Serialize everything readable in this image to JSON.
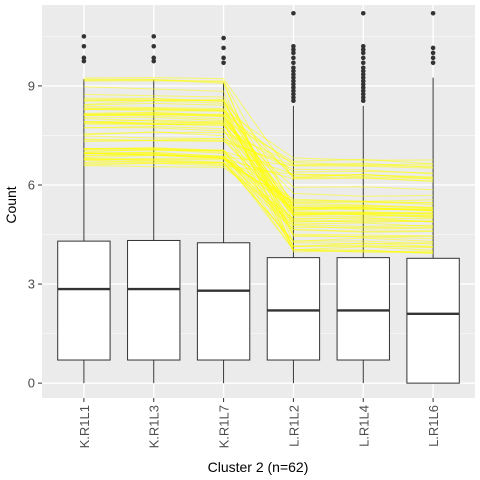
{
  "chart_data": {
    "type": "boxplot",
    "title": "",
    "xlabel": "Cluster 2 (n=62)",
    "ylabel": "Count",
    "ylim": [
      -0.45,
      11.45
    ],
    "yticks": [
      0,
      3,
      6,
      9
    ],
    "ytick_labels": [
      "0",
      "3",
      "6",
      "9"
    ],
    "grid": true,
    "categories": [
      "K.R1L1",
      "K.R1L3",
      "K.R1L7",
      "L.R1L2",
      "L.R1L4",
      "L.R1L6"
    ],
    "boxes": [
      {
        "category": "K.R1L1",
        "whisker_low": 0.0,
        "q1": 0.7,
        "median": 2.85,
        "q3": 4.3,
        "whisker_high": 9.2,
        "outliers": [
          9.75,
          9.85,
          10.2,
          10.5
        ]
      },
      {
        "category": "K.R1L3",
        "whisker_low": 0.0,
        "q1": 0.7,
        "median": 2.85,
        "q3": 4.32,
        "whisker_high": 9.2,
        "outliers": [
          9.75,
          9.85,
          10.2,
          10.5
        ]
      },
      {
        "category": "K.R1L7",
        "whisker_low": 0.0,
        "q1": 0.7,
        "median": 2.8,
        "q3": 4.25,
        "whisker_high": 9.1,
        "outliers": [
          9.7,
          9.85,
          10.15,
          10.45
        ]
      },
      {
        "category": "L.R1L2",
        "whisker_low": 0.0,
        "q1": 0.7,
        "median": 2.2,
        "q3": 3.8,
        "whisker_high": 8.4,
        "outliers": [
          8.55,
          8.65,
          8.75,
          8.85,
          8.95,
          9.05,
          9.15,
          9.25,
          9.35,
          9.45,
          9.55,
          9.7,
          9.85,
          10.0,
          10.1,
          10.2,
          11.2
        ]
      },
      {
        "category": "L.R1L4",
        "whisker_low": 0.0,
        "q1": 0.7,
        "median": 2.2,
        "q3": 3.8,
        "whisker_high": 8.4,
        "outliers": [
          8.55,
          8.65,
          8.75,
          8.85,
          8.95,
          9.05,
          9.15,
          9.25,
          9.35,
          9.45,
          9.55,
          9.7,
          9.85,
          10.0,
          10.1,
          10.2,
          11.2
        ]
      },
      {
        "category": "L.R1L6",
        "whisker_low": 0.0,
        "q1": 0.0,
        "median": 2.1,
        "q3": 3.78,
        "whisker_high": 9.25,
        "outliers": [
          9.7,
          9.85,
          10.0,
          10.15,
          11.2
        ]
      }
    ],
    "profile_lines": {
      "color": "#ffff00",
      "count": 62,
      "description": "Per-gene profiles across the 6 samples (n=62)",
      "group_ranges": [
        {
          "categories": [
            "K.R1L1",
            "K.R1L3",
            "K.R1L7"
          ],
          "range": [
            6.6,
            9.3
          ]
        },
        {
          "categories": [
            "L.R1L2",
            "L.R1L4",
            "L.R1L6"
          ],
          "range": [
            3.9,
            6.8
          ]
        }
      ]
    }
  }
}
